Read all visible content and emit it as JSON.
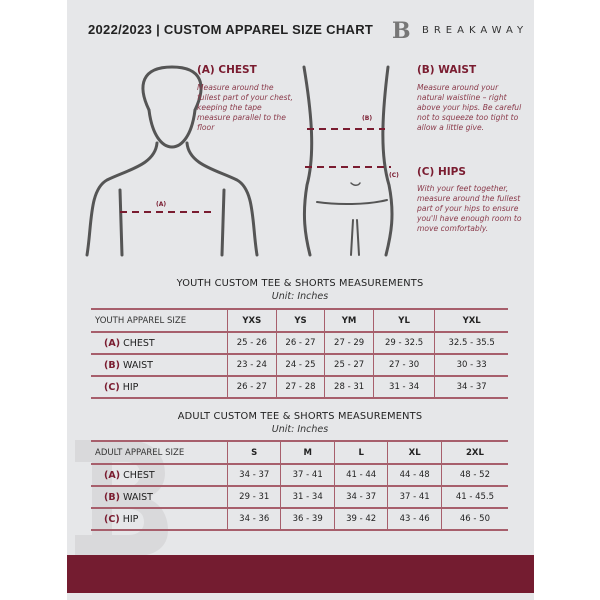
{
  "header": {
    "title": "2022/2023  |  CUSTOM APPAREL SIZE CHART",
    "brand": "BREAKAWAY",
    "logo_letter": "B"
  },
  "guide": {
    "chest": {
      "heading": "(A) CHEST",
      "text": "Measure around the fullest part of your chest, keeping the tape measure parallel to the floor",
      "tag": "(A)"
    },
    "waist": {
      "heading": "(B) WAIST",
      "text": "Measure around your natural waistline – right above your hips. Be careful not to squeeze too tight to allow a little give.",
      "tag": "(B)"
    },
    "hips": {
      "heading": "(C) HIPS",
      "text": "With your feet together, measure around the fullest part of your hips to ensure you'll have enough room to move comfortably.",
      "tag": "(C)"
    }
  },
  "youth": {
    "title": "YOUTH CUSTOM TEE & SHORTS MEASUREMENTS",
    "unit": "Unit: Inches",
    "header": [
      "YOUTH APPAREL SIZE",
      "YXS",
      "YS",
      "YM",
      "YL",
      "YXL"
    ],
    "rows": [
      {
        "letter": "(A)",
        "label": "CHEST",
        "values": [
          "25 - 26",
          "26 - 27",
          "27 - 29",
          "29 - 32.5",
          "32.5 - 35.5"
        ]
      },
      {
        "letter": "(B)",
        "label": "WAIST",
        "values": [
          "23 - 24",
          "24 - 25",
          "25 - 27",
          "27 - 30",
          "30 - 33"
        ]
      },
      {
        "letter": "(C)",
        "label": "HIP",
        "values": [
          "26 - 27",
          "27 - 28",
          "28 - 31",
          "31 - 34",
          "34 - 37"
        ]
      }
    ]
  },
  "adult": {
    "title": "ADULT CUSTOM TEE & SHORTS MEASUREMENTS",
    "unit": "Unit: Inches",
    "header": [
      "ADULT APPAREL SIZE",
      "S",
      "M",
      "L",
      "XL",
      "2XL"
    ],
    "rows": [
      {
        "letter": "(A)",
        "label": "CHEST",
        "values": [
          "34 - 37",
          "37 - 41",
          "41 - 44",
          "44 - 48",
          "48 - 52"
        ]
      },
      {
        "letter": "(B)",
        "label": "WAIST",
        "values": [
          "29 - 31",
          "31 - 34",
          "34 - 37",
          "37 - 41",
          "41 - 45.5"
        ]
      },
      {
        "letter": "(C)",
        "label": "HIP",
        "values": [
          "34 - 36",
          "36 - 39",
          "39 - 42",
          "43 - 46",
          "46 - 50"
        ]
      }
    ]
  },
  "colors": {
    "accent": "#741c30",
    "background": "#e6e7e9"
  }
}
